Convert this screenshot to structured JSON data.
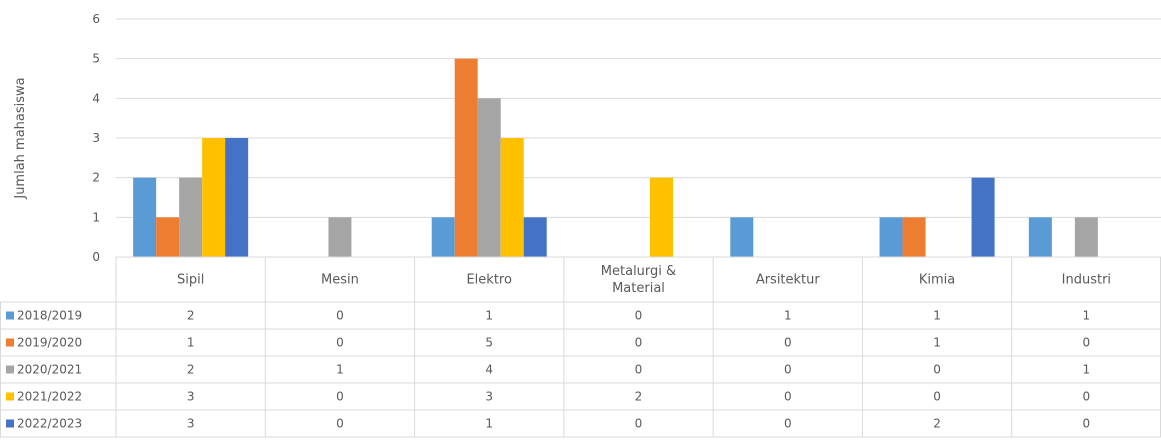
{
  "chart_data": {
    "type": "bar",
    "title": "",
    "xlabel": "",
    "ylabel": "Jumlah mahasiswa",
    "ylim": [
      0,
      6
    ],
    "yticks": [
      0,
      1,
      2,
      3,
      4,
      5,
      6
    ],
    "grid": true,
    "legend": "data-table",
    "categories": [
      [
        "Sipil"
      ],
      [
        "Mesin"
      ],
      [
        "Elektro"
      ],
      [
        "Metalurgi &",
        "Material"
      ],
      [
        "Arsitektur"
      ],
      [
        "Kimia"
      ],
      [
        "Industri"
      ]
    ],
    "series": [
      {
        "name": "2018/2019",
        "color": "#5B9BD5",
        "values": [
          2,
          0,
          1,
          0,
          1,
          1,
          1
        ]
      },
      {
        "name": "2019/2020",
        "color": "#ED7D31",
        "values": [
          1,
          0,
          5,
          0,
          0,
          1,
          0
        ]
      },
      {
        "name": "2020/2021",
        "color": "#A5A5A5",
        "values": [
          2,
          1,
          4,
          0,
          0,
          0,
          1
        ]
      },
      {
        "name": "2021/2022",
        "color": "#FFC000",
        "values": [
          3,
          0,
          3,
          2,
          0,
          0,
          0
        ]
      },
      {
        "name": "2022/2023",
        "color": "#4472C4",
        "values": [
          3,
          0,
          1,
          0,
          0,
          2,
          0
        ]
      }
    ]
  }
}
